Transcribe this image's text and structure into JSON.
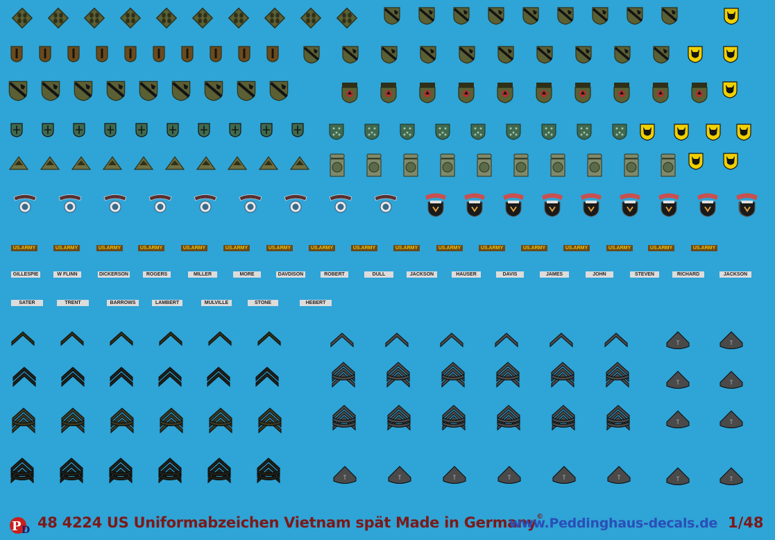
{
  "sheet": {
    "background": "#2fa4d6",
    "army_tape_text": "US.ARMY",
    "army_tape_count": 17,
    "name_tapes_row1": [
      "GILLESPIE",
      "W FLINN",
      "DICKERSON",
      "ROGERS",
      "MILLER",
      "MORE",
      "DAVDISON",
      "ROBERT",
      "DULL",
      "JACKSON",
      "HAUSER",
      "DAVIS",
      "JAMES",
      "JOHN",
      "STEVEN",
      "RICHARD",
      "JACKSON"
    ],
    "name_tapes_row2": [
      "SATER",
      "TRENT",
      "BARROWS",
      "LAMBERT",
      "MULVILLE",
      "STONE",
      "HEBERT"
    ],
    "insignia": {
      "ivy_leaf_patch": {
        "icon": "ivy-division-patch-icon",
        "count": 10
      },
      "black_cat_patch": {
        "icon": "black-cat-patch-icon",
        "count": 10
      },
      "numeral_one_patch": {
        "icon": "first-division-patch-icon",
        "count": 10
      },
      "cavalry_patch_row2": {
        "icon": "cavalry-patch-icon",
        "count": 11
      },
      "cavalry_patch_row3": {
        "icon": "cavalry-patch-icon",
        "count": 9
      },
      "americal_patch": {
        "icon": "americal-patch-icon",
        "count": 10
      },
      "shield_patch_small": {
        "icon": "shield-patch-icon",
        "count": 10
      },
      "star_shield_patch": {
        "icon": "star-shield-patch-icon",
        "count": 9
      },
      "triangle_patch": {
        "icon": "triangle-patch-icon",
        "count": 10
      },
      "airborne_82_patch": {
        "icon": "airborne-82-patch-icon",
        "count": 10
      },
      "ranger_scroll_patch": {
        "icon": "ranger-scroll-patch-icon",
        "count": 9
      },
      "airborne_tab_patch": {
        "icon": "airborne-tab-patch-icon",
        "count": 9
      },
      "chevron_insignia": {
        "icon": "rank-chevron-icon"
      },
      "tech_insignia": {
        "icon": "technician-rank-icon"
      }
    },
    "colors": {
      "olive": "#5b5f34",
      "olive_dark": "#2e3019",
      "brown": "#6b4a1c",
      "yellow": "#f0d000",
      "gray": "#4a4a4a",
      "black": "#141414",
      "cream": "#dcdcdc"
    }
  },
  "footer": {
    "logo": "peddinghaus-logo",
    "title": "48 4224 US Uniformabzeichen Vietnam spät  Made in Germany",
    "copyright": "©",
    "url": "www.Peddinghaus-decals.de",
    "scale": "1/48"
  }
}
